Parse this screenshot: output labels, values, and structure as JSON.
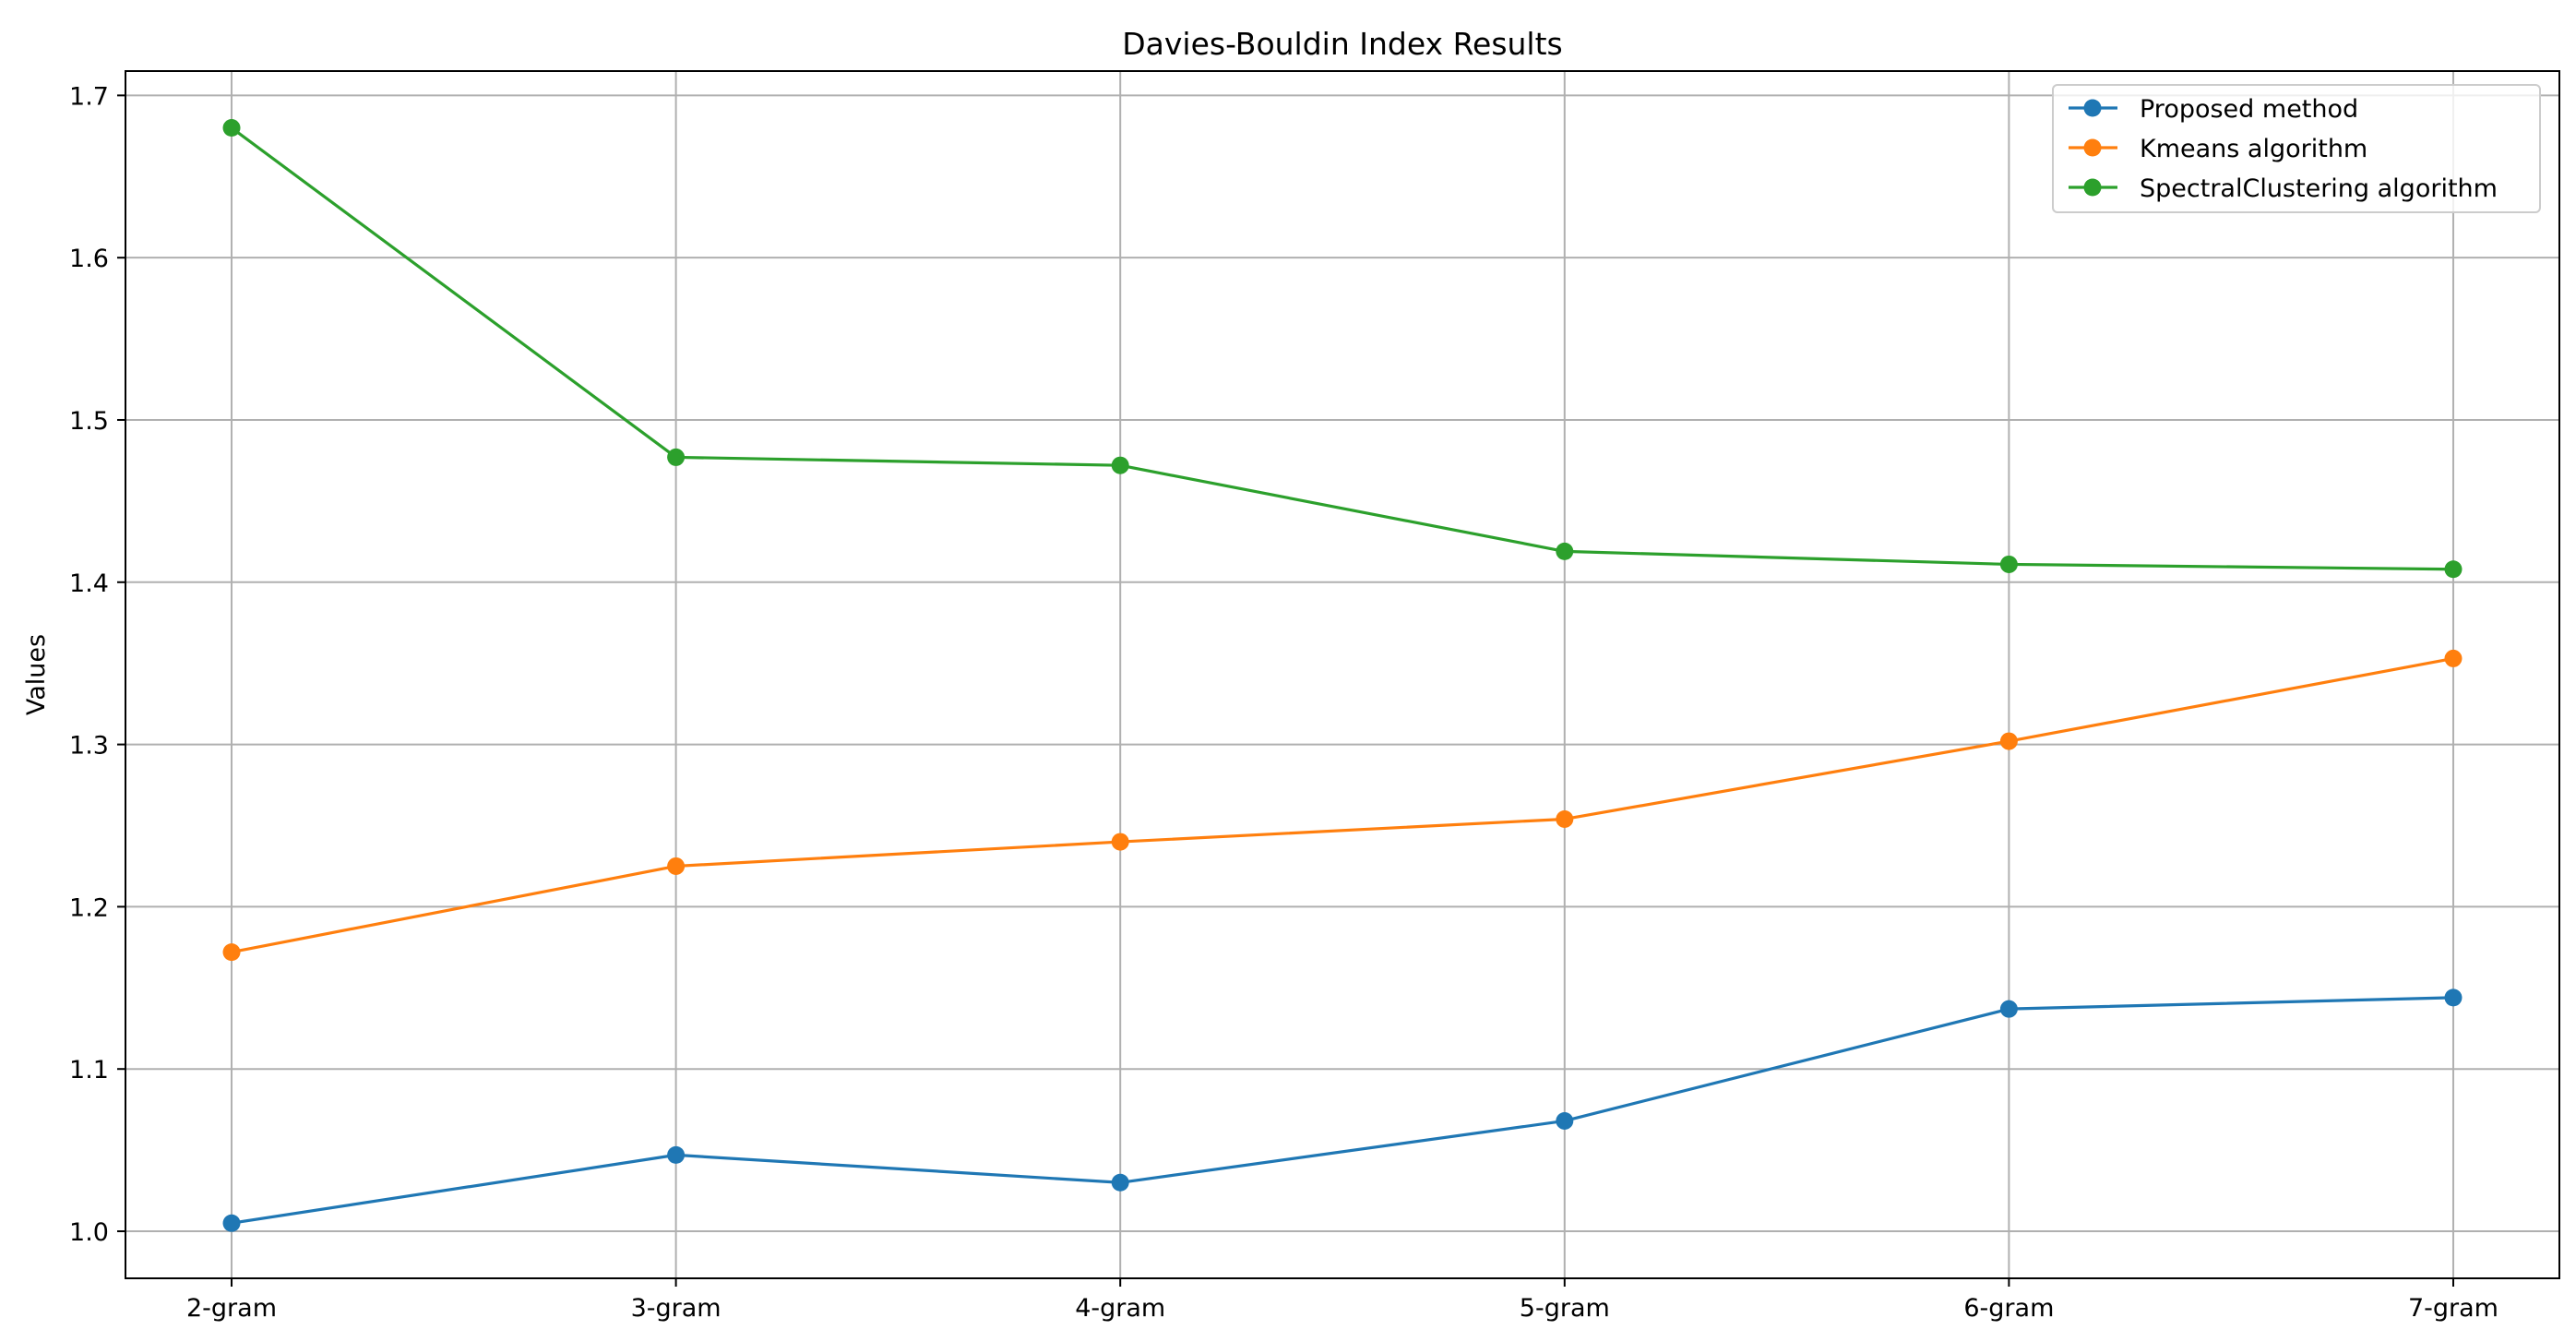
{
  "chart_data": {
    "type": "line",
    "title": "Davies-Bouldin Index Results",
    "xlabel": "",
    "ylabel": "Values",
    "categories": [
      "2-gram",
      "3-gram",
      "4-gram",
      "5-gram",
      "6-gram",
      "7-gram"
    ],
    "ylim": [
      0.971,
      1.715
    ],
    "yticks": [
      "1.0",
      "1.1",
      "1.2",
      "1.3",
      "1.4",
      "1.5",
      "1.6",
      "1.7"
    ],
    "grid": true,
    "legend_position": "top-right",
    "marker": "circle",
    "series": [
      {
        "name": "Proposed method",
        "color": "#1f77b4",
        "values": [
          1.005,
          1.047,
          1.03,
          1.068,
          1.137,
          1.144
        ]
      },
      {
        "name": "Kmeans algorithm",
        "color": "#ff7f0e",
        "values": [
          1.172,
          1.225,
          1.24,
          1.254,
          1.302,
          1.353
        ]
      },
      {
        "name": "SpectralClustering algorithm",
        "color": "#2ca02c",
        "values": [
          1.68,
          1.477,
          1.472,
          1.419,
          1.411,
          1.408
        ]
      }
    ]
  }
}
